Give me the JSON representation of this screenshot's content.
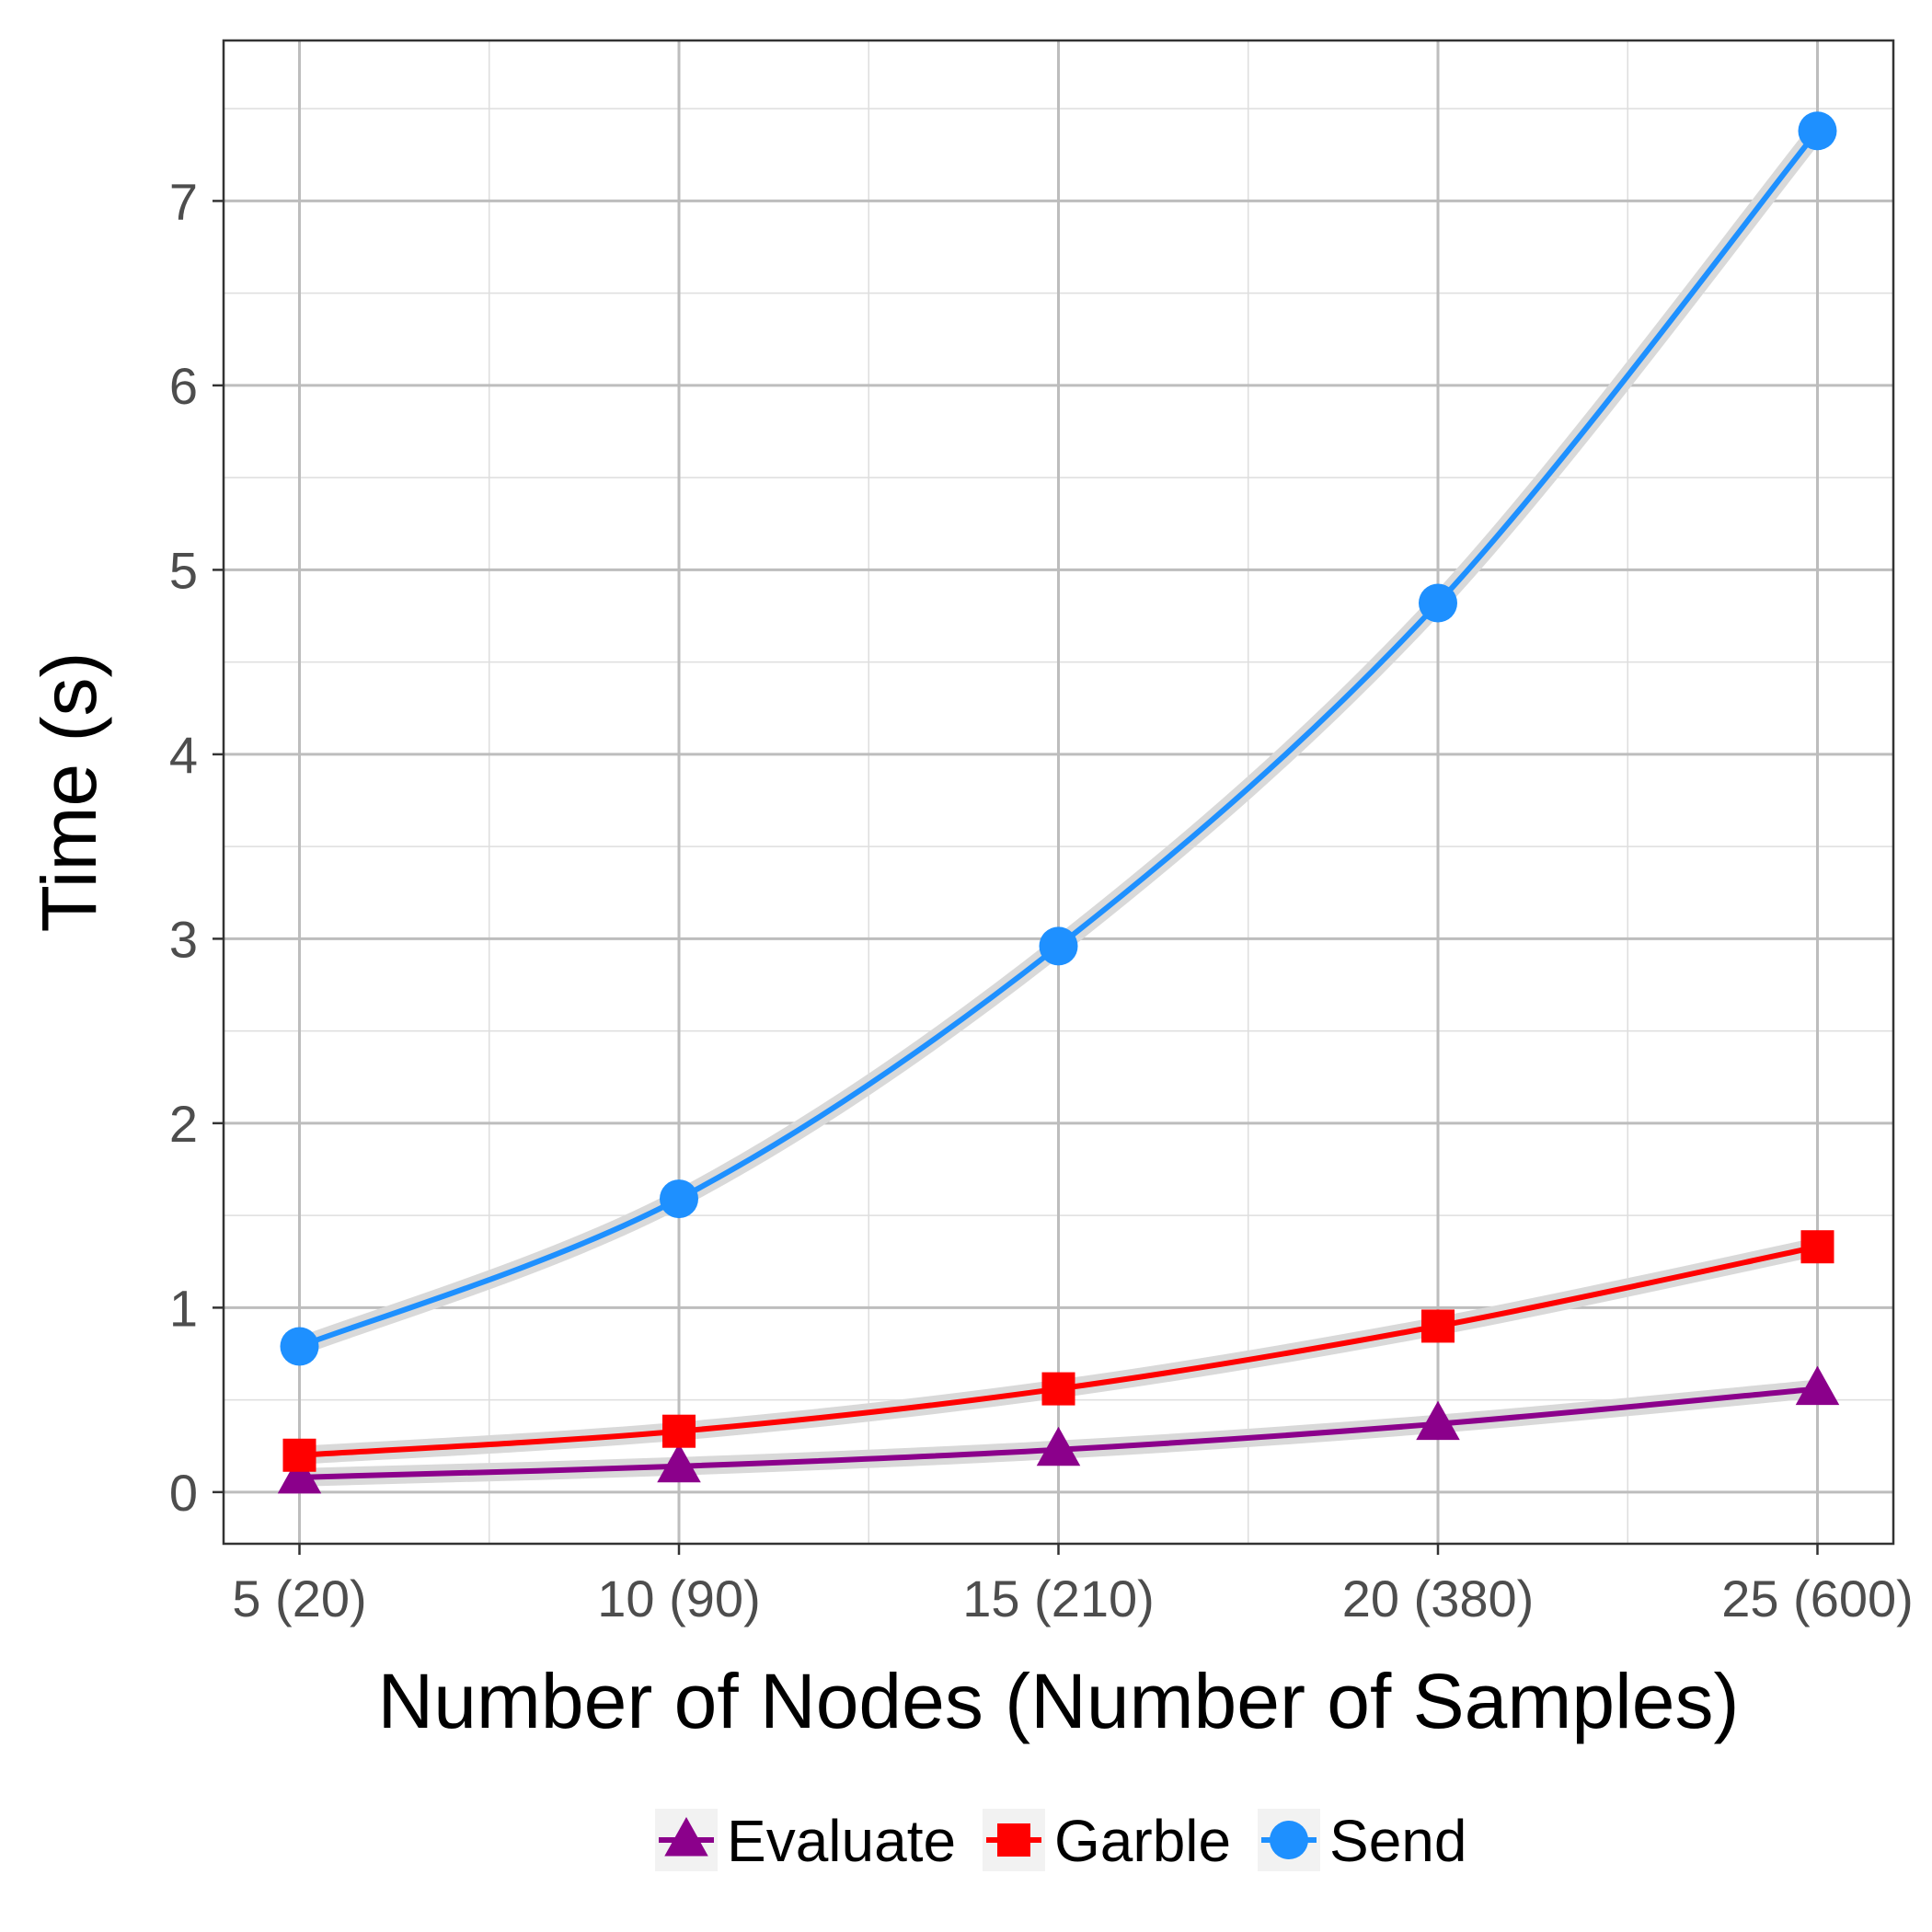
{
  "chart_data": {
    "type": "line",
    "title": "",
    "xlabel": "Number of Nodes (Number of Samples)",
    "ylabel": "Time (s)",
    "categories": [
      "5 (20)",
      "10 (90)",
      "15 (210)",
      "20 (380)",
      "25 (600)"
    ],
    "ylim": [
      -0.28,
      7.87
    ],
    "yticks": [
      "0",
      "1",
      "2",
      "3",
      "4",
      "5",
      "6",
      "7"
    ],
    "grid": true,
    "legend_position": "bottom",
    "series": [
      {
        "name": "Evaluate",
        "marker": "triangle",
        "color": "#8B008B",
        "values": [
          0.08,
          0.14,
          0.23,
          0.37,
          0.56
        ]
      },
      {
        "name": "Garble",
        "marker": "square",
        "color": "#FF0000",
        "values": [
          0.2,
          0.33,
          0.56,
          0.9,
          1.33
        ]
      },
      {
        "name": "Send",
        "marker": "circle",
        "color": "#1E90FF",
        "values": [
          0.79,
          1.59,
          2.96,
          4.82,
          7.38
        ]
      }
    ]
  }
}
